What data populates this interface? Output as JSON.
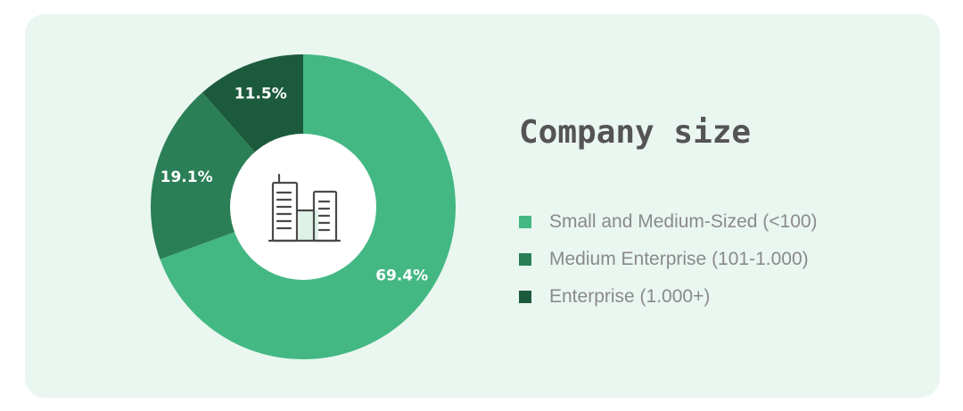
{
  "chart_data": {
    "type": "pie",
    "title": "Company size",
    "categories": [
      "Small and Medium-Sized (<100)",
      "Medium Enterprise (101-1.000)",
      "Enterprise (1.000+)"
    ],
    "values": [
      69.4,
      19.1,
      11.5
    ],
    "data_labels": [
      "69.4%",
      "19.1%",
      "11.5%"
    ],
    "colors": [
      "#43b883",
      "#2b7f57",
      "#1c5a3d"
    ],
    "donut": true,
    "legend_position": "right",
    "center_icon": "office-buildings-icon"
  }
}
